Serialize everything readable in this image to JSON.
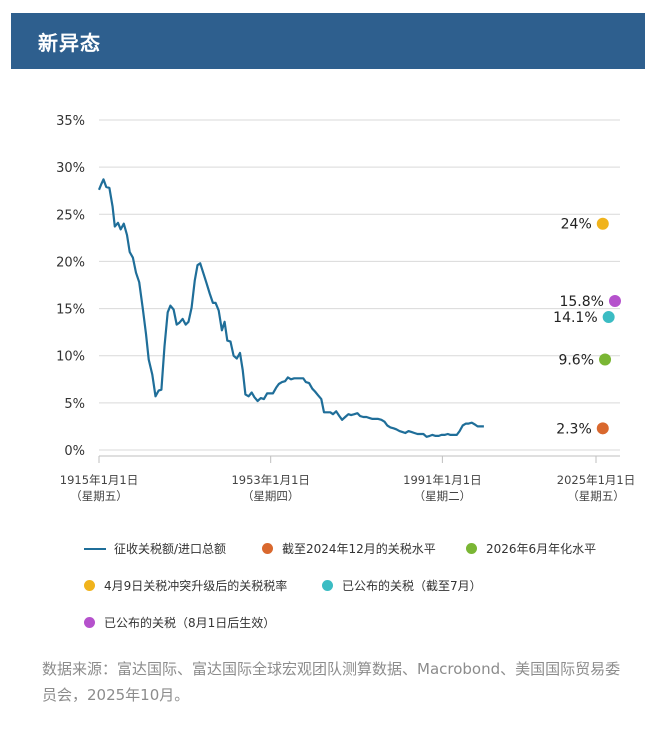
{
  "header": {
    "title": "新异态"
  },
  "colors": {
    "banner": "#2e5f8e",
    "line": "#1f6e99",
    "orange": "#d9682e",
    "green": "#7ab634",
    "yellow": "#f0b31c",
    "teal": "#3bbcc3",
    "purple": "#b551cc"
  },
  "chart_data": {
    "type": "line",
    "title": "",
    "xlabel": "",
    "ylabel": "",
    "ylim": [
      0,
      35
    ],
    "xlim": [
      1915,
      2028
    ],
    "yticks": [
      "0%",
      "5%",
      "10%",
      "15%",
      "20%",
      "25%",
      "30%",
      "35%"
    ],
    "xticks": [
      {
        "x": 1915,
        "line1": "1915年1月1日",
        "line2": "（星期五）"
      },
      {
        "x": 1953,
        "line1": "1953年1月1日",
        "line2": "（星期四）"
      },
      {
        "x": 1991,
        "line1": "1991年1月1日",
        "line2": "（星期二）"
      },
      {
        "x": 2025,
        "line1": "2025年1月1日",
        "line2": "（星期五）"
      }
    ],
    "grid": true,
    "series": [
      {
        "name": "征收关税额/进口总额",
        "kind": "line",
        "color": "#1f6e99",
        "points": [
          [
            1915.0,
            27.6
          ],
          [
            1915.5,
            28.2
          ],
          [
            1916,
            28.7
          ],
          [
            1916.6,
            27.9
          ],
          [
            1917.3,
            27.8
          ],
          [
            1918,
            25.8
          ],
          [
            1918.5,
            23.7
          ],
          [
            1919.2,
            24.1
          ],
          [
            1919.8,
            23.4
          ],
          [
            1920.5,
            24.0
          ],
          [
            1921.2,
            22.8
          ],
          [
            1921.8,
            21.0
          ],
          [
            1922.5,
            20.4
          ],
          [
            1923.2,
            18.8
          ],
          [
            1923.9,
            17.8
          ],
          [
            1924.7,
            15.0
          ],
          [
            1925.4,
            12.3
          ],
          [
            1926,
            9.6
          ],
          [
            1926.8,
            8.0
          ],
          [
            1927.5,
            5.7
          ],
          [
            1928.2,
            6.3
          ],
          [
            1928.8,
            6.4
          ],
          [
            1929.5,
            11.0
          ],
          [
            1930.2,
            14.6
          ],
          [
            1930.8,
            15.3
          ],
          [
            1931.5,
            14.9
          ],
          [
            1932.2,
            13.3
          ],
          [
            1932.8,
            13.5
          ],
          [
            1933.5,
            13.9
          ],
          [
            1934.2,
            13.3
          ],
          [
            1934.8,
            13.6
          ],
          [
            1935.5,
            15.1
          ],
          [
            1936.2,
            18.0
          ],
          [
            1936.8,
            19.6
          ],
          [
            1937.4,
            19.8
          ],
          [
            1938.2,
            18.6
          ],
          [
            1938.8,
            17.7
          ],
          [
            1939.5,
            16.6
          ],
          [
            1940.2,
            15.6
          ],
          [
            1940.8,
            15.6
          ],
          [
            1941.5,
            14.8
          ],
          [
            1942.2,
            12.7
          ],
          [
            1942.8,
            13.6
          ],
          [
            1943.4,
            11.6
          ],
          [
            1944.1,
            11.5
          ],
          [
            1944.8,
            10.0
          ],
          [
            1945.5,
            9.7
          ],
          [
            1946.2,
            10.3
          ],
          [
            1946.8,
            8.5
          ],
          [
            1947.4,
            5.9
          ],
          [
            1948.1,
            5.7
          ],
          [
            1948.8,
            6.1
          ],
          [
            1949.4,
            5.6
          ],
          [
            1950.1,
            5.2
          ],
          [
            1950.8,
            5.5
          ],
          [
            1951.5,
            5.4
          ],
          [
            1952.2,
            6.0
          ],
          [
            1952.8,
            6.0
          ],
          [
            1953.5,
            6.0
          ],
          [
            1954.2,
            6.6
          ],
          [
            1954.8,
            7.0
          ],
          [
            1955.5,
            7.2
          ],
          [
            1956.2,
            7.3
          ],
          [
            1956.8,
            7.7
          ],
          [
            1957.5,
            7.5
          ],
          [
            1958.2,
            7.6
          ],
          [
            1958.8,
            7.6
          ],
          [
            1959.5,
            7.6
          ],
          [
            1960.2,
            7.6
          ],
          [
            1960.8,
            7.2
          ],
          [
            1961.5,
            7.1
          ],
          [
            1962.2,
            6.5
          ],
          [
            1962.8,
            6.2
          ],
          [
            1963.5,
            5.8
          ],
          [
            1964.2,
            5.4
          ],
          [
            1964.8,
            4.0
          ],
          [
            1965.5,
            4.0
          ],
          [
            1966.2,
            4.0
          ],
          [
            1966.8,
            3.8
          ],
          [
            1967.5,
            4.1
          ],
          [
            1968.2,
            3.6
          ],
          [
            1968.8,
            3.2
          ],
          [
            1969.5,
            3.5
          ],
          [
            1970.2,
            3.8
          ],
          [
            1970.8,
            3.7
          ],
          [
            1971.5,
            3.8
          ],
          [
            1972.2,
            3.9
          ],
          [
            1972.8,
            3.6
          ],
          [
            1973.5,
            3.5
          ],
          [
            1974.2,
            3.5
          ],
          [
            1974.8,
            3.4
          ],
          [
            1975.5,
            3.3
          ],
          [
            1976.2,
            3.3
          ],
          [
            1976.8,
            3.3
          ],
          [
            1977.5,
            3.2
          ],
          [
            1978.2,
            3.0
          ],
          [
            1978.8,
            2.6
          ],
          [
            1979.5,
            2.4
          ],
          [
            1980.2,
            2.3
          ],
          [
            1980.8,
            2.2
          ],
          [
            1981.5,
            2.0
          ],
          [
            1982.2,
            1.9
          ],
          [
            1982.8,
            1.8
          ],
          [
            1983.5,
            2.0
          ],
          [
            1984.2,
            1.9
          ],
          [
            1984.8,
            1.8
          ],
          [
            1985.5,
            1.7
          ],
          [
            1986.2,
            1.7
          ],
          [
            1986.8,
            1.7
          ],
          [
            1987.5,
            1.4
          ],
          [
            1988.2,
            1.5
          ],
          [
            1988.8,
            1.6
          ],
          [
            1989.5,
            1.5
          ],
          [
            1990.2,
            1.5
          ],
          [
            1990.8,
            1.6
          ],
          [
            1991.5,
            1.6
          ],
          [
            1992.2,
            1.7
          ],
          [
            1992.8,
            1.6
          ],
          [
            1993.5,
            1.6
          ],
          [
            1994.2,
            1.6
          ],
          [
            1994.8,
            2.0
          ],
          [
            1995.5,
            2.6
          ],
          [
            1996.2,
            2.8
          ],
          [
            1996.8,
            2.8
          ],
          [
            1997.5,
            2.9
          ],
          [
            1998.2,
            2.7
          ],
          [
            1998.8,
            2.5
          ],
          [
            1999.5,
            2.5
          ],
          [
            2000.2,
            2.5
          ]
        ]
      },
      {
        "name": "截至2024年12月的关税水平",
        "kind": "point",
        "color": "#d9682e",
        "x": 2026.5,
        "y": 2.3,
        "label": "2.3%"
      },
      {
        "name": "2026年6月年化水平",
        "kind": "point",
        "color": "#7ab634",
        "x": 2027,
        "y": 9.6,
        "label": "9.6%"
      },
      {
        "name": "4月9日关税冲突升级后的关税税率",
        "kind": "point",
        "color": "#f0b31c",
        "x": 2026.5,
        "y": 24.0,
        "label": "24%"
      },
      {
        "name": "已公布的关税（截至7月）",
        "kind": "point",
        "color": "#3bbcc3",
        "x": 2027.8,
        "y": 14.1,
        "label": "14.1%"
      },
      {
        "name": "已公布的关税（8月1日后生效）",
        "kind": "point",
        "color": "#b551cc",
        "x": 2029.2,
        "y": 15.8,
        "label": "15.8%"
      }
    ]
  },
  "source": "数据来源：富达国际、富达国际全球宏观团队测算数据、Macrobond、美国国际贸易委员会，2025年10月。"
}
